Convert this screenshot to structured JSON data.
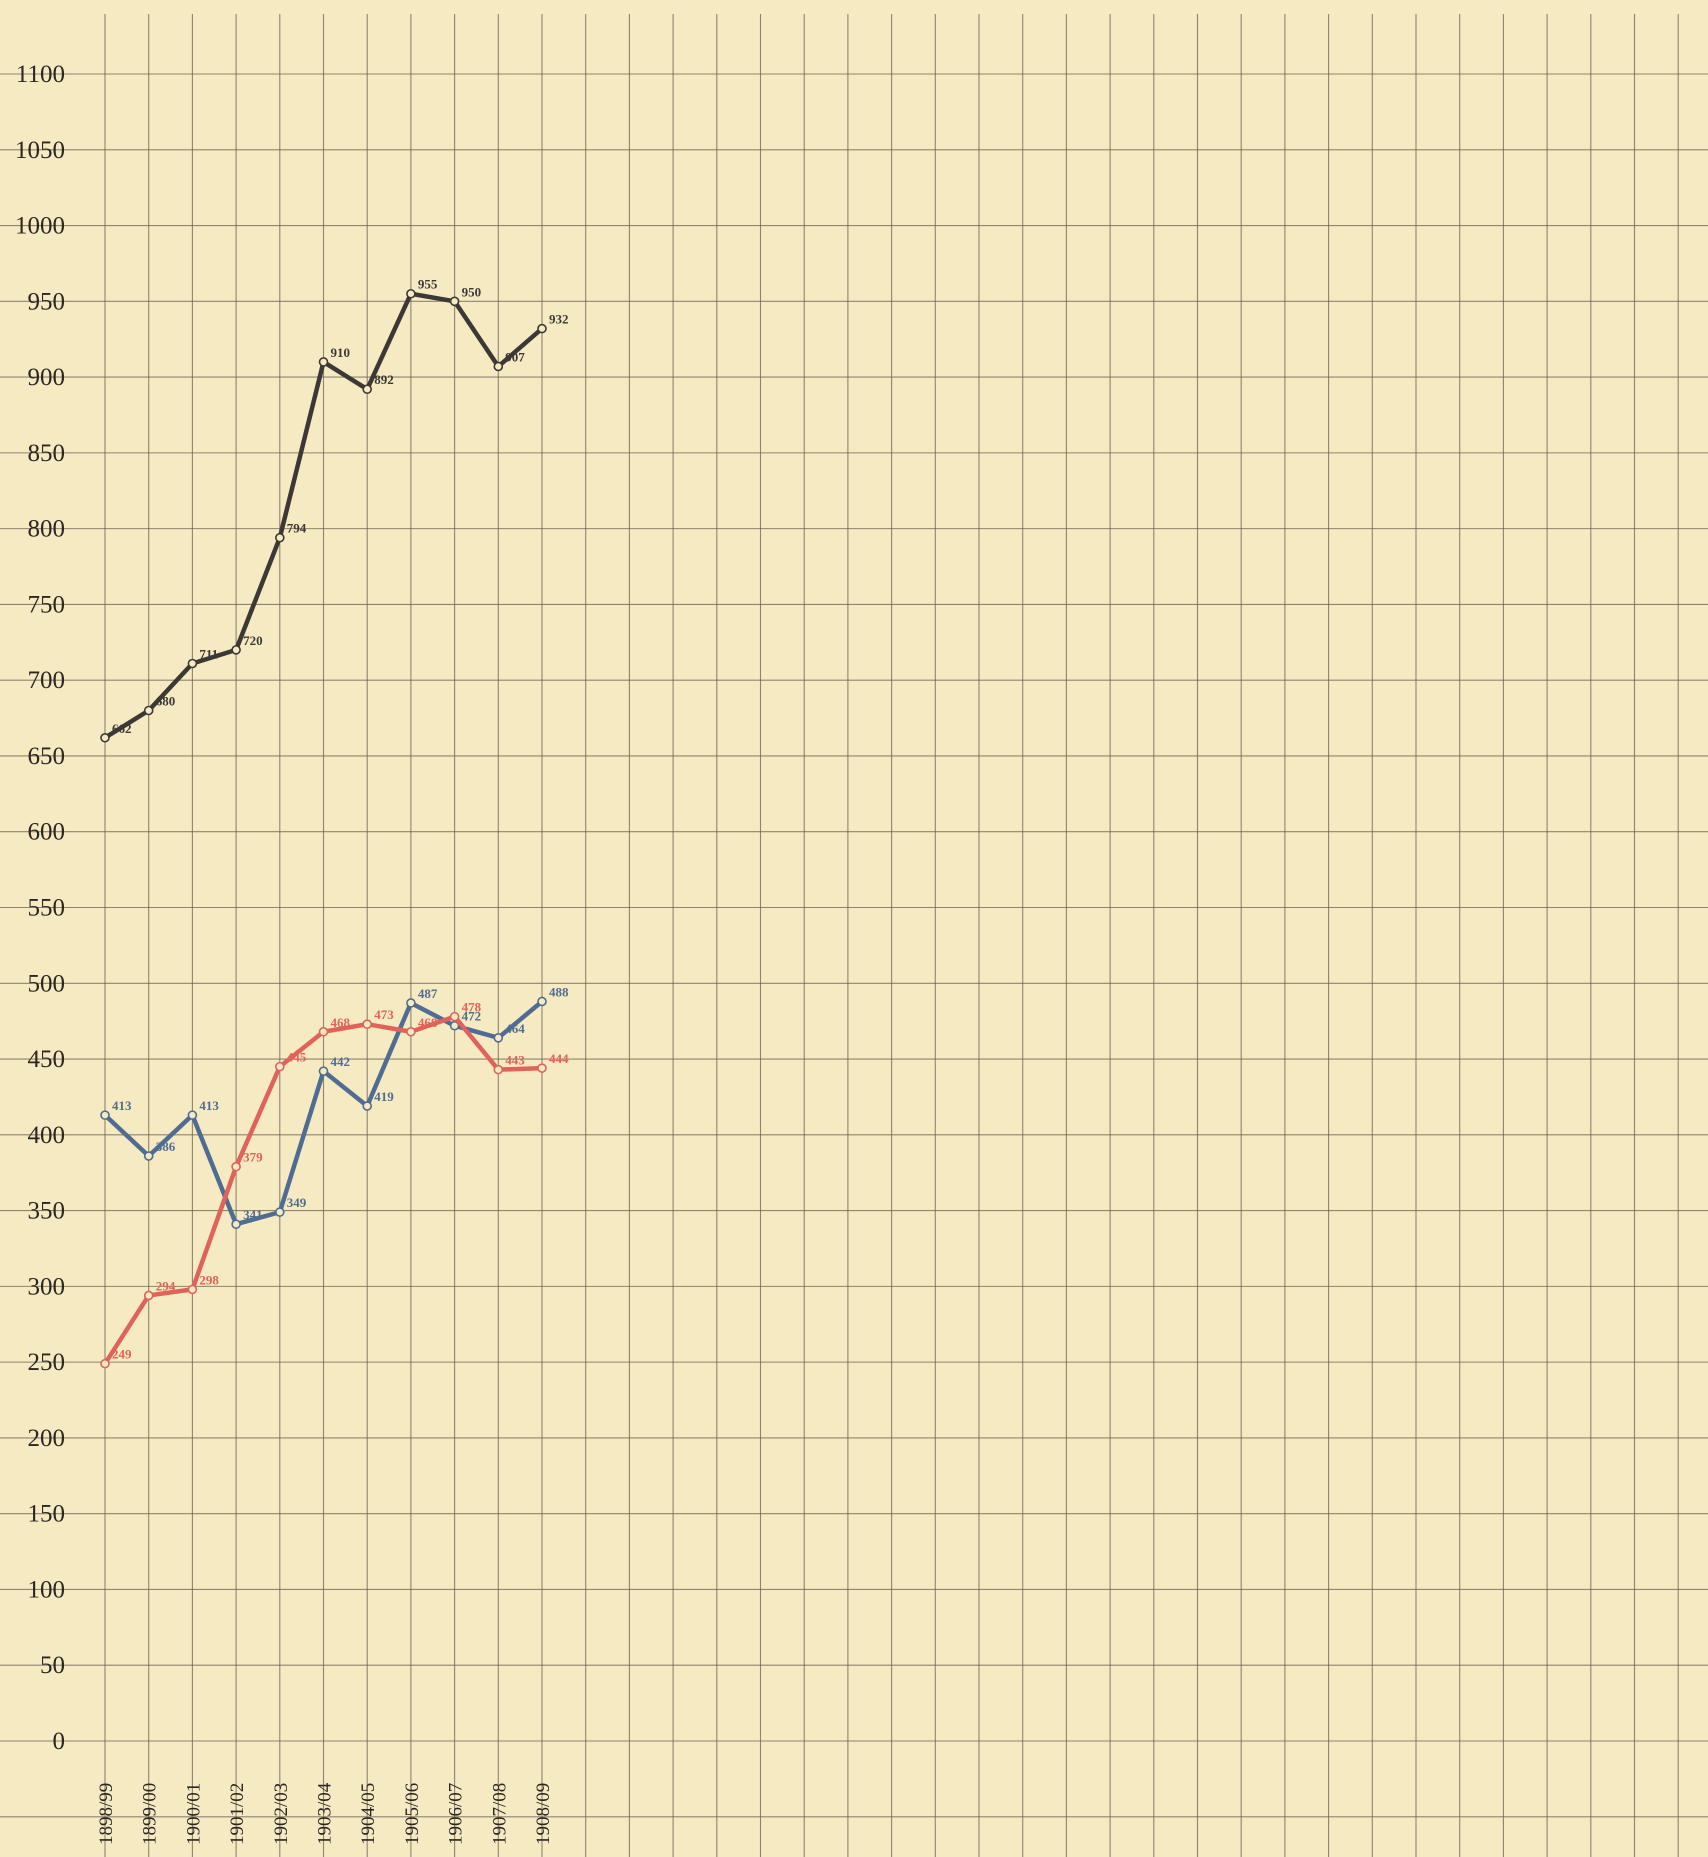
{
  "chart_data": {
    "type": "line",
    "title": "",
    "xlabel": "",
    "ylabel": "",
    "categories": [
      "1898/99",
      "1899/00",
      "1900/01",
      "1901/02",
      "1902/03",
      "1903/04",
      "1904/05",
      "1905/06",
      "1906/07",
      "1907/08",
      "1908/09"
    ],
    "yticks": [
      "0",
      "50",
      "100",
      "150",
      "200",
      "250",
      "300",
      "350",
      "400",
      "450",
      "500",
      "550",
      "600",
      "650",
      "700",
      "750",
      "800",
      "850",
      "900",
      "950",
      "1000",
      "1050",
      "1100"
    ],
    "ylim": [
      0,
      1100
    ],
    "grid": true,
    "legend": "none",
    "series": [
      {
        "color": "#3b3836",
        "values": [
          662,
          680,
          711,
          720,
          794,
          910,
          892,
          955,
          950,
          907,
          932
        ],
        "labels": [
          "662",
          "680",
          "711",
          "720",
          "794",
          "910",
          "892",
          "955",
          "950",
          "907",
          "932"
        ]
      },
      {
        "color": "#4f6d93",
        "values": [
          413,
          386,
          413,
          341,
          349,
          442,
          419,
          487,
          472,
          464,
          488
        ],
        "labels": [
          "413",
          "386",
          "413",
          "341",
          "349",
          "442",
          "419",
          "487",
          "472",
          "464",
          "488"
        ]
      },
      {
        "color": "#e0625a",
        "values": [
          249,
          294,
          298,
          379,
          445,
          468,
          473,
          468,
          478,
          443,
          444
        ],
        "labels": [
          "249",
          "294",
          "298",
          "379",
          "445",
          "468",
          "473",
          "468",
          "478",
          "443",
          "444"
        ]
      }
    ]
  }
}
